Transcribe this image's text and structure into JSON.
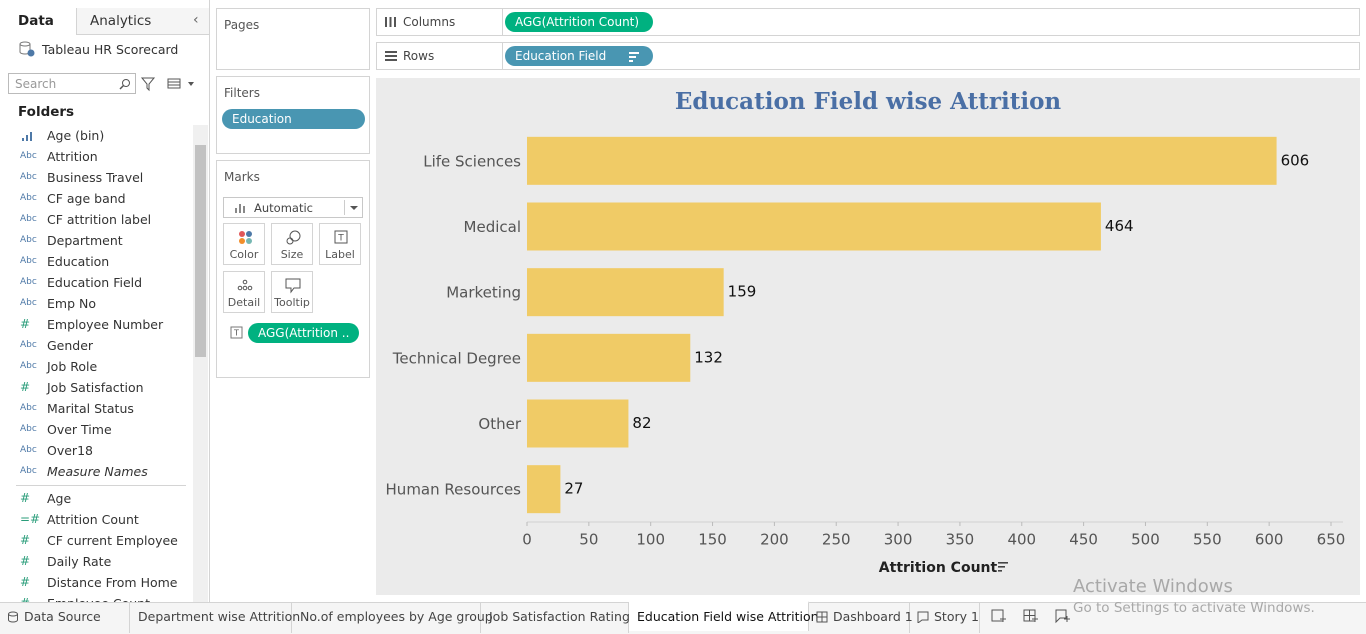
{
  "data_pane": {
    "tabs": [
      "Data",
      "Analytics"
    ],
    "datasource": "Tableau HR Scorecard",
    "search_placeholder": "Search",
    "folders_label": "Folders",
    "dimensions": [
      {
        "icon": null,
        "name": "Age (bin)"
      },
      {
        "icon": "Abc",
        "name": "Attrition"
      },
      {
        "icon": "Abc",
        "name": "Business Travel"
      },
      {
        "icon": "Abc",
        "name": "CF age band"
      },
      {
        "icon": "Abc",
        "name": "CF attrition label"
      },
      {
        "icon": "Abc",
        "name": "Department"
      },
      {
        "icon": "Abc",
        "name": "Education"
      },
      {
        "icon": "Abc",
        "name": "Education Field"
      },
      {
        "icon": "Abc",
        "name": "Emp No"
      },
      {
        "icon": "#",
        "name": "Employee Number"
      },
      {
        "icon": "Abc",
        "name": "Gender"
      },
      {
        "icon": "Abc",
        "name": "Job Role"
      },
      {
        "icon": "#",
        "name": "Job Satisfaction"
      },
      {
        "icon": "Abc",
        "name": "Marital Status"
      },
      {
        "icon": "Abc",
        "name": "Over Time"
      },
      {
        "icon": "Abc",
        "name": "Over18"
      },
      {
        "icon": "Abc",
        "name": "Measure Names"
      }
    ],
    "measures": [
      {
        "icon": "#",
        "name": "Age"
      },
      {
        "icon": "=#",
        "name": "Attrition Count"
      },
      {
        "icon": "#",
        "name": "CF current Employee"
      },
      {
        "icon": "#",
        "name": "Daily Rate"
      },
      {
        "icon": "#",
        "name": "Distance From Home"
      },
      {
        "icon": "#",
        "name": "Employee Count"
      }
    ]
  },
  "cards": {
    "pages": "Pages",
    "filters": "Filters",
    "filter_pills": [
      "Education"
    ],
    "marks": "Marks",
    "mark_type": "Automatic",
    "mark_buttons": [
      "Color",
      "Size",
      "Label",
      "Detail",
      "Tooltip"
    ],
    "mark_pills": [
      "AGG(Attrition .."
    ]
  },
  "shelves": {
    "columns_label": "Columns",
    "columns_pill": "AGG(Attrition Count)",
    "rows_label": "Rows",
    "rows_pill": "Education Field"
  },
  "chart_data": {
    "type": "bar",
    "orientation": "horizontal",
    "title": "Education Field wise Attrition",
    "x_label": "Attrition Count",
    "categories": [
      "Life Sciences",
      "Medical",
      "Marketing",
      "Technical Degree",
      "Other",
      "Human Resources"
    ],
    "values": [
      606,
      464,
      159,
      132,
      82,
      27
    ],
    "color": "#f0cb66",
    "xlim": [
      0,
      650
    ],
    "xticks": [
      0,
      50,
      100,
      150,
      200,
      250,
      300,
      350,
      400,
      450,
      500,
      550,
      600,
      650
    ]
  },
  "sheet_tabs": [
    "Data Source",
    "Department wise Attrition",
    "No.of employees by Age group",
    "Job Satisfaction Rating",
    "Education Field wise Attrition",
    "Dashboard 1",
    "Story 1"
  ],
  "active_tab": 4,
  "watermark": {
    "title": "Activate Windows",
    "subtitle": "Go to Settings to activate Windows."
  }
}
